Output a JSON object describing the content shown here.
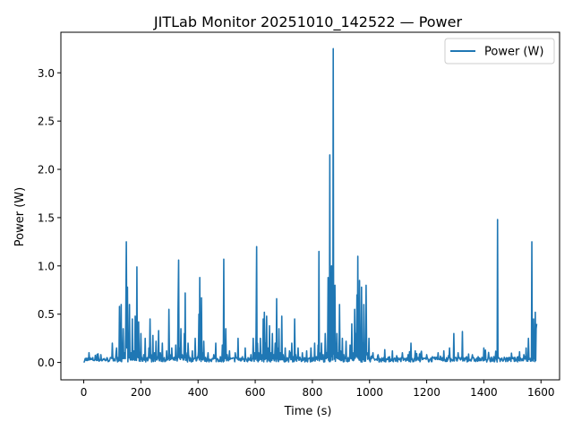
{
  "chart_data": {
    "type": "line",
    "title": "JITLab Monitor 20251010_142522 — Power",
    "xlabel": "Time (s)",
    "ylabel": "Power (W)",
    "xlim": [
      -80,
      1665
    ],
    "ylim": [
      -0.18,
      3.42
    ],
    "xticks": [
      0,
      200,
      400,
      600,
      800,
      1000,
      1200,
      1400,
      1600
    ],
    "yticks": [
      0.0,
      0.5,
      1.0,
      1.5,
      2.0,
      2.5,
      3.0
    ],
    "ytick_labels": [
      "0.0",
      "0.5",
      "1.0",
      "1.5",
      "2.0",
      "2.5",
      "3.0"
    ],
    "grid": false,
    "legend": "upper right",
    "series": [
      {
        "name": "Power (W)",
        "color": "#1f77b4",
        "baseline": 0.03,
        "x_start": 0,
        "x_end": 1585,
        "points": [
          [
            0,
            0.01
          ],
          [
            5,
            0.04
          ],
          [
            12,
            0.02
          ],
          [
            20,
            0.05
          ],
          [
            30,
            0.03
          ],
          [
            45,
            0.02
          ],
          [
            50,
            0.09
          ],
          [
            55,
            0.03
          ],
          [
            60,
            0.08
          ],
          [
            65,
            0.02
          ],
          [
            75,
            0.03
          ],
          [
            90,
            0.02
          ],
          [
            100,
            0.2
          ],
          [
            105,
            0.04
          ],
          [
            115,
            0.15
          ],
          [
            120,
            0.05
          ],
          [
            125,
            0.58
          ],
          [
            128,
            0.1
          ],
          [
            131,
            0.6
          ],
          [
            134,
            0.08
          ],
          [
            138,
            0.35
          ],
          [
            142,
            0.1
          ],
          [
            147,
            0.4
          ],
          [
            149,
            1.25
          ],
          [
            151,
            0.15
          ],
          [
            153,
            0.78
          ],
          [
            156,
            0.2
          ],
          [
            160,
            0.6
          ],
          [
            165,
            0.1
          ],
          [
            170,
            0.45
          ],
          [
            175,
            0.12
          ],
          [
            180,
            0.48
          ],
          [
            183,
            0.2
          ],
          [
            186,
            0.99
          ],
          [
            189,
            0.15
          ],
          [
            192,
            0.42
          ],
          [
            196,
            0.1
          ],
          [
            200,
            0.3
          ],
          [
            210,
            0.08
          ],
          [
            215,
            0.25
          ],
          [
            222,
            0.05
          ],
          [
            228,
            0.15
          ],
          [
            232,
            0.45
          ],
          [
            236,
            0.08
          ],
          [
            242,
            0.28
          ],
          [
            248,
            0.1
          ],
          [
            253,
            0.22
          ],
          [
            258,
            0.06
          ],
          [
            262,
            0.33
          ],
          [
            268,
            0.1
          ],
          [
            275,
            0.2
          ],
          [
            282,
            0.05
          ],
          [
            290,
            0.12
          ],
          [
            298,
            0.55
          ],
          [
            302,
            0.08
          ],
          [
            308,
            0.15
          ],
          [
            315,
            0.05
          ],
          [
            322,
            0.18
          ],
          [
            330,
            0.55
          ],
          [
            332,
            1.06
          ],
          [
            335,
            0.15
          ],
          [
            340,
            0.35
          ],
          [
            345,
            0.08
          ],
          [
            352,
            0.3
          ],
          [
            355,
            0.72
          ],
          [
            358,
            0.1
          ],
          [
            365,
            0.2
          ],
          [
            372,
            0.05
          ],
          [
            380,
            0.12
          ],
          [
            390,
            0.25
          ],
          [
            398,
            0.06
          ],
          [
            403,
            0.5
          ],
          [
            406,
            0.88
          ],
          [
            409,
            0.12
          ],
          [
            412,
            0.67
          ],
          [
            415,
            0.1
          ],
          [
            420,
            0.22
          ],
          [
            428,
            0.04
          ],
          [
            435,
            0.1
          ],
          [
            445,
            0.03
          ],
          [
            455,
            0.08
          ],
          [
            462,
            0.2
          ],
          [
            468,
            0.04
          ],
          [
            478,
            0.06
          ],
          [
            485,
            0.18
          ],
          [
            490,
            1.07
          ],
          [
            493,
            0.2
          ],
          [
            497,
            0.35
          ],
          [
            502,
            0.08
          ],
          [
            510,
            0.12
          ],
          [
            520,
            0.04
          ],
          [
            530,
            0.1
          ],
          [
            540,
            0.25
          ],
          [
            545,
            0.04
          ],
          [
            555,
            0.06
          ],
          [
            565,
            0.15
          ],
          [
            575,
            0.05
          ],
          [
            585,
            0.08
          ],
          [
            593,
            0.25
          ],
          [
            598,
            0.1
          ],
          [
            603,
            0.3
          ],
          [
            605,
            1.2
          ],
          [
            608,
            0.2
          ],
          [
            612,
            0.1
          ],
          [
            618,
            0.25
          ],
          [
            622,
            0.08
          ],
          [
            628,
            0.45
          ],
          [
            632,
            0.52
          ],
          [
            636,
            0.2
          ],
          [
            640,
            0.48
          ],
          [
            645,
            0.15
          ],
          [
            650,
            0.38
          ],
          [
            655,
            0.1
          ],
          [
            660,
            0.3
          ],
          [
            665,
            0.08
          ],
          [
            670,
            0.2
          ],
          [
            675,
            0.66
          ],
          [
            678,
            0.15
          ],
          [
            683,
            0.35
          ],
          [
            688,
            0.1
          ],
          [
            693,
            0.48
          ],
          [
            698,
            0.08
          ],
          [
            705,
            0.15
          ],
          [
            712,
            0.05
          ],
          [
            720,
            0.12
          ],
          [
            728,
            0.2
          ],
          [
            733,
            0.06
          ],
          [
            738,
            0.45
          ],
          [
            742,
            0.08
          ],
          [
            750,
            0.15
          ],
          [
            758,
            0.04
          ],
          [
            765,
            0.1
          ],
          [
            772,
            0.05
          ],
          [
            780,
            0.12
          ],
          [
            788,
            0.04
          ],
          [
            795,
            0.15
          ],
          [
            802,
            0.05
          ],
          [
            808,
            0.2
          ],
          [
            814,
            0.06
          ],
          [
            820,
            0.18
          ],
          [
            823,
            1.15
          ],
          [
            826,
            0.1
          ],
          [
            832,
            0.2
          ],
          [
            838,
            0.08
          ],
          [
            845,
            0.3
          ],
          [
            850,
            0.1
          ],
          [
            855,
            0.88
          ],
          [
            858,
            0.3
          ],
          [
            861,
            2.15
          ],
          [
            864,
            0.5
          ],
          [
            867,
            1.0
          ],
          [
            870,
            0.2
          ],
          [
            873,
            3.25
          ],
          [
            876,
            0.4
          ],
          [
            879,
            0.8
          ],
          [
            882,
            0.15
          ],
          [
            886,
            0.3
          ],
          [
            890,
            0.1
          ],
          [
            895,
            0.6
          ],
          [
            899,
            0.12
          ],
          [
            905,
            0.25
          ],
          [
            910,
            0.08
          ],
          [
            918,
            0.22
          ],
          [
            925,
            0.05
          ],
          [
            932,
            0.18
          ],
          [
            938,
            0.4
          ],
          [
            942,
            0.1
          ],
          [
            948,
            0.55
          ],
          [
            952,
            0.3
          ],
          [
            956,
            0.7
          ],
          [
            959,
            1.1
          ],
          [
            962,
            0.4
          ],
          [
            965,
            0.85
          ],
          [
            968,
            0.3
          ],
          [
            972,
            0.78
          ],
          [
            976,
            0.2
          ],
          [
            980,
            0.6
          ],
          [
            984,
            0.15
          ],
          [
            988,
            0.8
          ],
          [
            992,
            0.1
          ],
          [
            998,
            0.25
          ],
          [
            1004,
            0.04
          ],
          [
            1012,
            0.1
          ],
          [
            1020,
            0.03
          ],
          [
            1030,
            0.08
          ],
          [
            1040,
            0.03
          ],
          [
            1050,
            0.05
          ],
          [
            1060,
            0.03
          ],
          [
            1070,
            0.06
          ],
          [
            1080,
            0.12
          ],
          [
            1085,
            0.03
          ],
          [
            1095,
            0.07
          ],
          [
            1105,
            0.03
          ],
          [
            1115,
            0.1
          ],
          [
            1125,
            0.04
          ],
          [
            1135,
            0.08
          ],
          [
            1145,
            0.2
          ],
          [
            1150,
            0.04
          ],
          [
            1160,
            0.12
          ],
          [
            1170,
            0.05
          ],
          [
            1180,
            0.1
          ],
          [
            1190,
            0.04
          ],
          [
            1200,
            0.08
          ],
          [
            1210,
            0.03
          ],
          [
            1220,
            0.06
          ],
          [
            1230,
            0.03
          ],
          [
            1240,
            0.1
          ],
          [
            1250,
            0.04
          ],
          [
            1260,
            0.12
          ],
          [
            1270,
            0.05
          ],
          [
            1280,
            0.15
          ],
          [
            1285,
            0.04
          ],
          [
            1295,
            0.3
          ],
          [
            1300,
            0.05
          ],
          [
            1310,
            0.1
          ],
          [
            1320,
            0.04
          ],
          [
            1325,
            0.32
          ],
          [
            1328,
            0.05
          ],
          [
            1340,
            0.06
          ],
          [
            1350,
            0.03
          ],
          [
            1360,
            0.08
          ],
          [
            1370,
            0.03
          ],
          [
            1380,
            0.06
          ],
          [
            1390,
            0.02
          ],
          [
            1400,
            0.15
          ],
          [
            1404,
            0.03
          ],
          [
            1415,
            0.05
          ],
          [
            1425,
            0.03
          ],
          [
            1435,
            0.06
          ],
          [
            1445,
            0.03
          ],
          [
            1448,
            1.48
          ],
          [
            1451,
            0.05
          ],
          [
            1460,
            0.04
          ],
          [
            1470,
            0.03
          ],
          [
            1480,
            0.05
          ],
          [
            1490,
            0.03
          ],
          [
            1500,
            0.04
          ],
          [
            1510,
            0.03
          ],
          [
            1520,
            0.06
          ],
          [
            1530,
            0.03
          ],
          [
            1540,
            0.08
          ],
          [
            1548,
            0.15
          ],
          [
            1552,
            0.05
          ],
          [
            1556,
            0.25
          ],
          [
            1560,
            0.04
          ],
          [
            1565,
            0.03
          ],
          [
            1568,
            1.25
          ],
          [
            1571,
            0.2
          ],
          [
            1574,
            0.45
          ],
          [
            1577,
            0.25
          ],
          [
            1580,
            0.52
          ],
          [
            1583,
            0.35
          ],
          [
            1585,
            0.4
          ]
        ]
      }
    ]
  }
}
